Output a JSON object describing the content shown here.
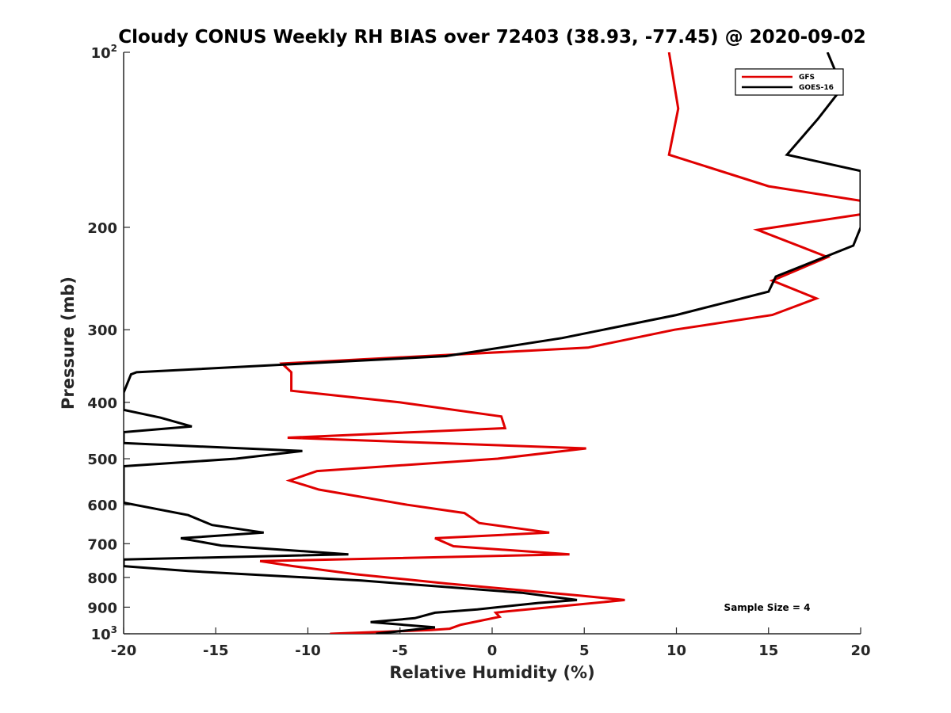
{
  "chart_data": {
    "type": "line",
    "title": "Cloudy CONUS Weekly RH BIAS over 72403 (38.93, -77.45) @ 2020-09-02",
    "xlabel": "Relative Humidity (%)",
    "ylabel": "Pressure (mb)",
    "xlim": [
      -20,
      20
    ],
    "ylim": [
      100,
      1000
    ],
    "y_scale": "log",
    "y_reversed": true,
    "grid": false,
    "legend_position": "top-right",
    "x_ticks": [
      -20,
      -15,
      -10,
      -5,
      0,
      5,
      10,
      15,
      20
    ],
    "x_tick_labels": [
      "-20",
      "-15",
      "-10",
      "-5",
      "0",
      "5",
      "10",
      "15",
      "20"
    ],
    "y_ticks": [
      100,
      200,
      300,
      400,
      500,
      600,
      700,
      800,
      900,
      1000
    ],
    "y_tick_labels": [
      {
        "base": "10",
        "sup": "2"
      },
      {
        "base": "200",
        "sup": ""
      },
      {
        "base": "300",
        "sup": ""
      },
      {
        "base": "400",
        "sup": ""
      },
      {
        "base": "500",
        "sup": ""
      },
      {
        "base": "600",
        "sup": ""
      },
      {
        "base": "700",
        "sup": ""
      },
      {
        "base": "800",
        "sup": ""
      },
      {
        "base": "900",
        "sup": ""
      },
      {
        "base": "10",
        "sup": "3"
      }
    ],
    "annotation": "Sample Size = 4",
    "series": [
      {
        "name": "GFS",
        "color": "#e00000",
        "points": [
          [
            9.6,
            100
          ],
          [
            10.1,
            125
          ],
          [
            9.6,
            150
          ],
          [
            15.0,
            170
          ],
          [
            20.0,
            180
          ],
          [
            20.0,
            190
          ],
          [
            14.4,
            202
          ],
          [
            18.2,
            225
          ],
          [
            15.2,
            247
          ],
          [
            17.6,
            265
          ],
          [
            15.2,
            283
          ],
          [
            9.9,
            300
          ],
          [
            5.2,
            322
          ],
          [
            -11.4,
            343
          ],
          [
            -10.9,
            355
          ],
          [
            -10.9,
            382
          ],
          [
            -5.0,
            400
          ],
          [
            0.5,
            423
          ],
          [
            0.7,
            443
          ],
          [
            -11.1,
            460
          ],
          [
            5.1,
            480
          ],
          [
            0.3,
            500
          ],
          [
            -9.5,
            525
          ],
          [
            -11.0,
            545
          ],
          [
            -9.4,
            565
          ],
          [
            -4.6,
            600
          ],
          [
            -1.5,
            620
          ],
          [
            -0.7,
            645
          ],
          [
            3.1,
            670
          ],
          [
            -3.1,
            685
          ],
          [
            -2.1,
            707
          ],
          [
            4.2,
            730
          ],
          [
            -12.6,
            750
          ],
          [
            -10.8,
            765
          ],
          [
            -7.4,
            790
          ],
          [
            -2.4,
            820
          ],
          [
            4.8,
            860
          ],
          [
            7.2,
            875
          ],
          [
            0.8,
            915
          ],
          [
            0.2,
            920
          ],
          [
            0.4,
            935
          ],
          [
            -1.7,
            965
          ],
          [
            -2.3,
            980
          ],
          [
            -3.3,
            985
          ],
          [
            -8.8,
            1000
          ]
        ]
      },
      {
        "name": "GOES-16",
        "color": "#000000",
        "points": [
          [
            18.2,
            100
          ],
          [
            19.0,
            115
          ],
          [
            17.7,
            130
          ],
          [
            16.0,
            150
          ],
          [
            20.0,
            160
          ],
          [
            20.0,
            200
          ],
          [
            19.6,
            215
          ],
          [
            15.4,
            243
          ],
          [
            15.0,
            258
          ],
          [
            10.0,
            283
          ],
          [
            3.8,
            310
          ],
          [
            -2.5,
            333
          ],
          [
            -19.3,
            355
          ],
          [
            -19.6,
            358
          ],
          [
            -20.0,
            385
          ],
          [
            -20.0,
            412
          ],
          [
            -18.0,
            425
          ],
          [
            -16.3,
            440
          ],
          [
            -20.0,
            450
          ],
          [
            -20.0,
            470
          ],
          [
            -10.3,
            485
          ],
          [
            -13.9,
            500
          ],
          [
            -20.0,
            515
          ],
          [
            -20.0,
            595
          ],
          [
            -16.5,
            625
          ],
          [
            -15.2,
            650
          ],
          [
            -12.4,
            670
          ],
          [
            -16.9,
            685
          ],
          [
            -14.7,
            705
          ],
          [
            -7.8,
            730
          ],
          [
            -20.0,
            745
          ],
          [
            -20.0,
            765
          ],
          [
            -16.5,
            780
          ],
          [
            -7.1,
            810
          ],
          [
            1.6,
            850
          ],
          [
            4.6,
            875
          ],
          [
            2.5,
            885
          ],
          [
            -0.8,
            908
          ],
          [
            -3.1,
            920
          ],
          [
            -4.2,
            940
          ],
          [
            -6.6,
            955
          ],
          [
            -3.1,
            975
          ],
          [
            -6.3,
            1000
          ]
        ]
      }
    ]
  }
}
